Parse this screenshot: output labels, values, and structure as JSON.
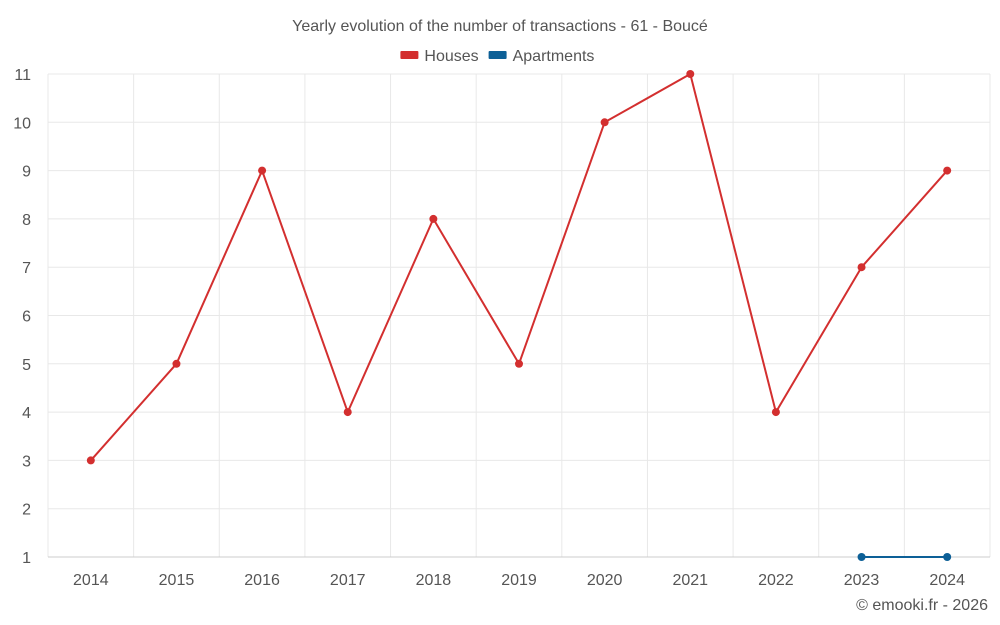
{
  "chart_data": {
    "type": "line",
    "title": "Yearly evolution of the number of transactions - 61 - Boucé",
    "xlabel": "",
    "ylabel": "",
    "x": [
      "2014",
      "2015",
      "2016",
      "2017",
      "2018",
      "2019",
      "2020",
      "2021",
      "2022",
      "2023",
      "2024"
    ],
    "ylim": [
      1,
      11
    ],
    "yticks": [
      1,
      2,
      3,
      4,
      5,
      6,
      7,
      8,
      9,
      10,
      11
    ],
    "grid": true,
    "legend_position": "top",
    "series": [
      {
        "name": "Houses",
        "color": "#d32f2f",
        "values": [
          3,
          5,
          9,
          4,
          8,
          5,
          10,
          11,
          4,
          7,
          9
        ]
      },
      {
        "name": "Apartments",
        "color": "#0d6097",
        "values": [
          null,
          null,
          null,
          null,
          null,
          null,
          null,
          null,
          null,
          1,
          1
        ]
      }
    ]
  },
  "credit": "© emooki.fr - 2026"
}
